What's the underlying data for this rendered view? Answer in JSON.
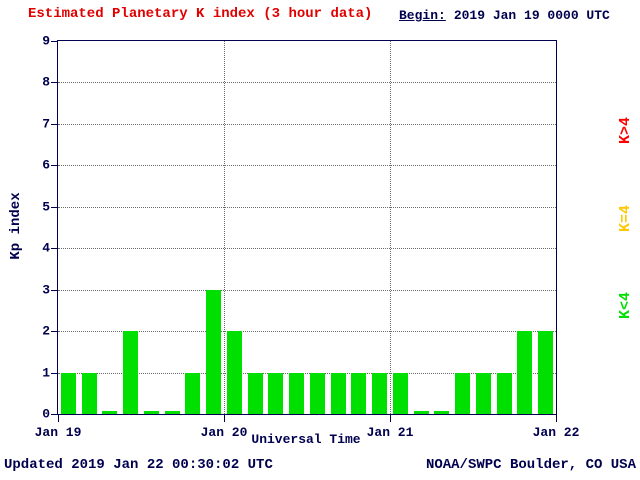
{
  "title": "Estimated Planetary K index (3 hour data)",
  "begin": {
    "label": "Begin:",
    "value": "2019 Jan 19 0000 UTC"
  },
  "footer": {
    "updated": "Updated 2019 Jan 22 00:30:02 UTC",
    "source": "NOAA/SWPC Boulder, CO USA"
  },
  "legend": [
    {
      "label": "K>4",
      "color": "#ff0000"
    },
    {
      "label": "K=4",
      "color": "#ffc800"
    },
    {
      "label": "K<4",
      "color": "#00e000"
    }
  ],
  "chart_data": {
    "type": "bar",
    "title": "Estimated Planetary K index (3 hour data)",
    "xlabel": "Universal Time",
    "ylabel": "Kp index",
    "ylim": [
      0,
      9
    ],
    "yticks": [
      0,
      1,
      2,
      3,
      4,
      5,
      6,
      7,
      8,
      9
    ],
    "x_tick_labels": [
      "Jan 19",
      "Jan 20",
      "Jan 21",
      "Jan 22"
    ],
    "bar_interval_hours": 3,
    "days": [
      "2019 Jan 19",
      "2019 Jan 20",
      "2019 Jan 21"
    ],
    "bar_color_rule": "green if Kp<4, yellow if Kp=4, red if Kp>4",
    "grid": "dotted horizontal lines at each Kp integer, dotted vertical lines at day boundaries",
    "values": [
      1,
      1,
      0,
      2,
      0,
      0,
      1,
      3,
      2,
      1,
      1,
      1,
      1,
      1,
      1,
      1,
      1,
      0,
      0,
      1,
      1,
      1,
      2,
      2
    ]
  }
}
